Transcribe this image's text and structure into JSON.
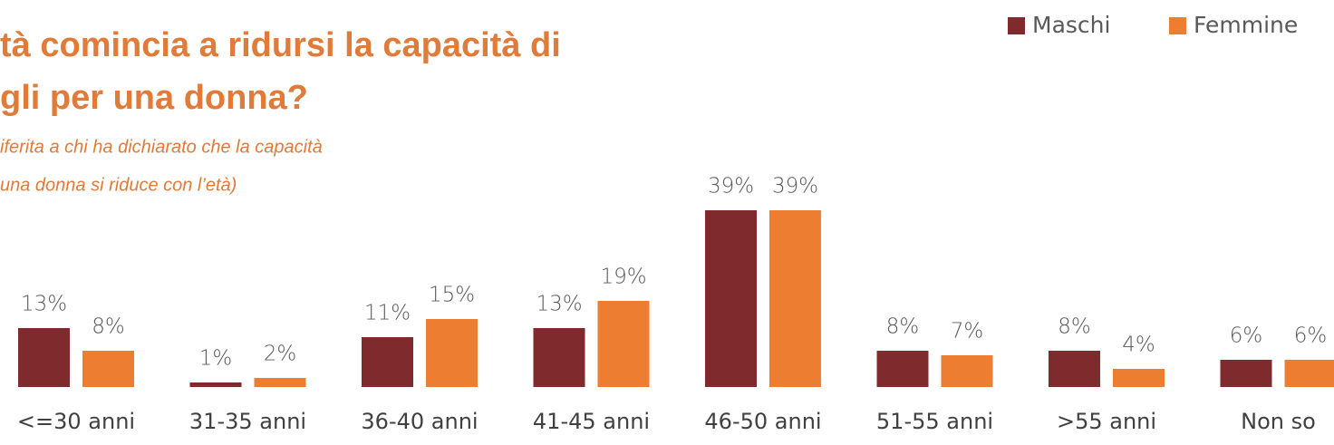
{
  "chart_data": {
    "type": "bar",
    "title_lines": [
      "tà comincia a ridursi la capacità di",
      "gli per una donna?"
    ],
    "subtitle_lines": [
      "iferita a chi ha dichiarato che la capacità",
      "una donna si riduce con l’età)"
    ],
    "categories": [
      "<=30 anni",
      "31-35 anni",
      "36-40 anni",
      "41-45 anni",
      "46-50 anni",
      "51-55 anni",
      ">55 anni",
      "Non so"
    ],
    "series": [
      {
        "name": "Maschi",
        "color": "#7f2b2e",
        "values": [
          13,
          1,
          11,
          13,
          39,
          8,
          8,
          6
        ],
        "value_labels": [
          "13%",
          "1%",
          "11%",
          "13%",
          "39%",
          "8%",
          "8%",
          "6%"
        ]
      },
      {
        "name": "Femmine",
        "color": "#ed7d31",
        "values": [
          8,
          2,
          15,
          19,
          39,
          7,
          4,
          6
        ],
        "value_labels": [
          "8%",
          "2%",
          "15%",
          "19%",
          "39%",
          "7%",
          "4%",
          "6%"
        ]
      }
    ],
    "legend": "top-right"
  }
}
